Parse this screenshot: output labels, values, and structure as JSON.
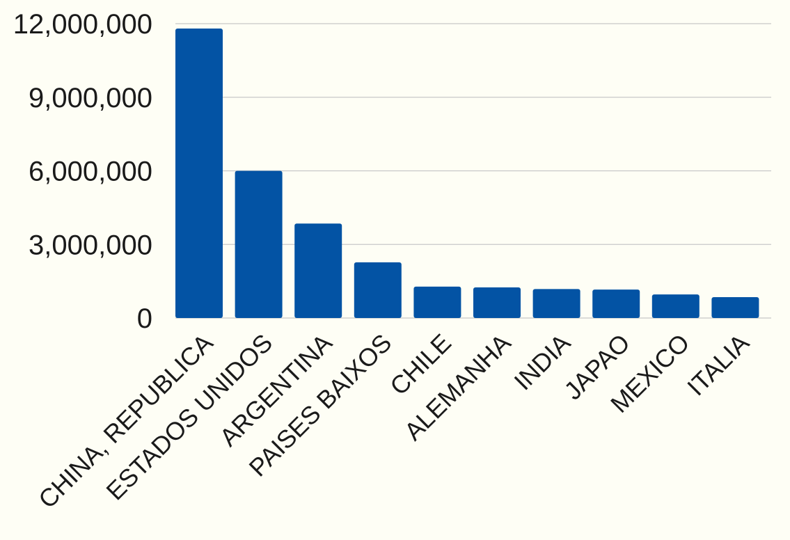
{
  "chart_data": {
    "type": "bar",
    "title": "",
    "xlabel": "",
    "ylabel": "",
    "categories": [
      "CHINA, REPUBLICA",
      "ESTADOS UNIDOS",
      "ARGENTINA",
      "PAISES BAIXOS",
      "CHILE",
      "ALEMANHA",
      "INDIA",
      "JAPAO",
      "MEXICO",
      "ITALIA"
    ],
    "values": [
      11800000,
      6000000,
      3850000,
      2270000,
      1280000,
      1250000,
      1180000,
      1160000,
      960000,
      850000
    ],
    "ylim": [
      0,
      12000000
    ],
    "yticks": [
      0,
      3000000,
      6000000,
      9000000,
      12000000
    ],
    "ytick_labels": [
      "0",
      "3,000,000",
      "6,000,000",
      "9,000,000",
      "12,000,000"
    ],
    "grid": true,
    "legend": "none",
    "colors": {
      "bar": "#0353a4",
      "gridline": "#c8c8c8",
      "background": "#fefef5",
      "text": "#1a1a1a"
    }
  }
}
